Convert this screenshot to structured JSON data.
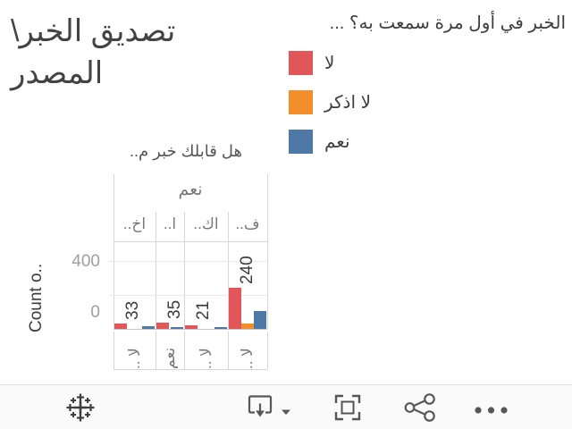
{
  "page": {
    "title_line1": "تصديق الخبر\\",
    "title_line2": "المصدر"
  },
  "legend": {
    "title": "الخبر في أول مرة سمعت به؟ ...",
    "items": [
      {
        "label": "لا",
        "color": "#e15759"
      },
      {
        "label": "لا اذكر",
        "color": "#f28e2b"
      },
      {
        "label": "نعم",
        "color": "#4e79a7"
      }
    ]
  },
  "chart_data": {
    "type": "bar",
    "orientation": "vertical",
    "title": "هل قابلك خبر م..",
    "group_header": "نعم",
    "ylabel": "Count o..",
    "yticks": [
      0,
      400
    ],
    "gridline_values": [
      200,
      400
    ],
    "ylim": [
      0,
      520
    ],
    "categories": [
      "اخ..",
      "ا..",
      "اك..",
      "ف.."
    ],
    "x_axis_value_labels": [
      "لا ..",
      "نعم",
      "لا ..",
      "لا .."
    ],
    "series": [
      {
        "name": "لا",
        "color": "#e15759",
        "values": [
          33,
          35,
          21,
          240
        ]
      },
      {
        "name": "لا اذكر",
        "color": "#f28e2b",
        "values": [
          0,
          0,
          0,
          33
        ]
      },
      {
        "name": "نعم",
        "color": "#4e79a7",
        "values": [
          15,
          8,
          8,
          105
        ]
      }
    ],
    "bar_labels": [
      "33",
      "35",
      "21",
      "240"
    ],
    "legend_position": "top-right"
  },
  "toolbar": {
    "icons": [
      "tableau-logo",
      "download",
      "download-options",
      "fullscreen",
      "share",
      "more"
    ]
  },
  "colors": {
    "grid": "#d6d6d6",
    "grid_light": "#e9e9e9",
    "baseline": "#c9c9c9",
    "axis_text": "#9e9e9e",
    "header_text": "#787878",
    "text_dark": "#3f3f3f",
    "footer_bg": "#fafafa",
    "icon": "#575757"
  }
}
